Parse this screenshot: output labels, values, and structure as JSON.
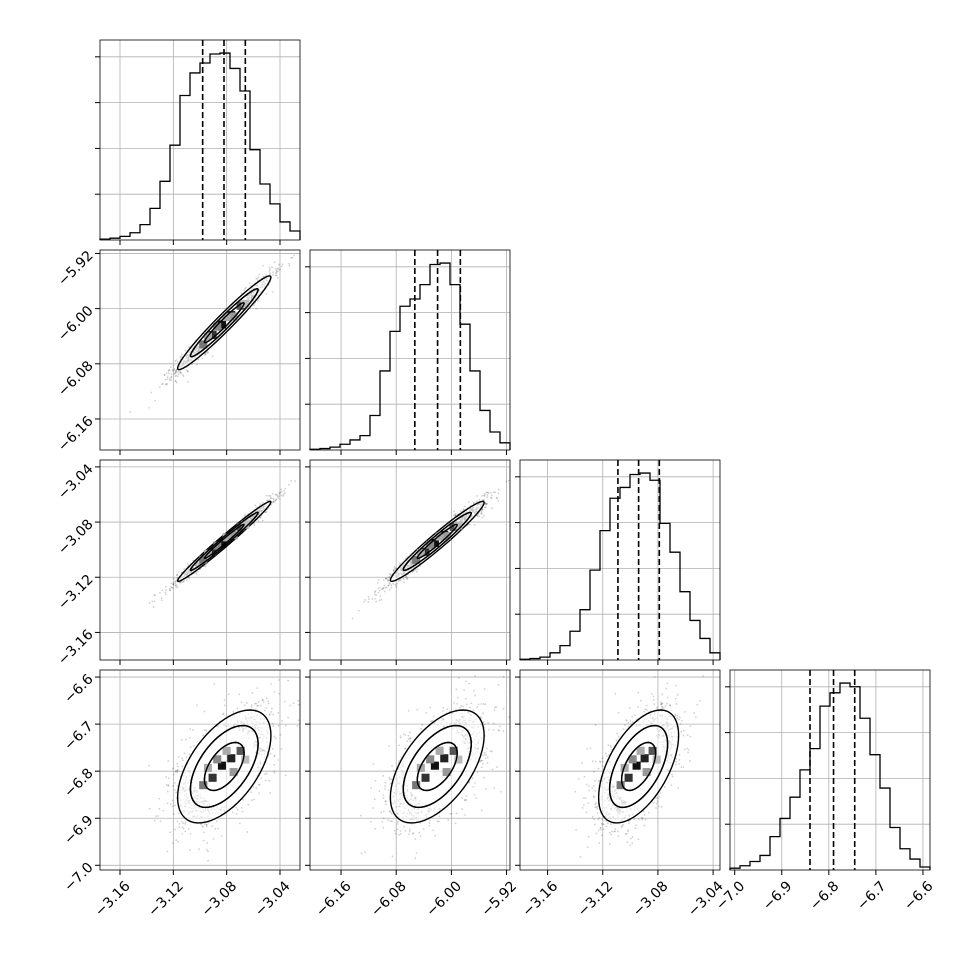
{
  "chart_data": {
    "type": "corner",
    "grid": true,
    "parameters": [
      {
        "range": [
          -3.175,
          -3.025
        ],
        "ticks": [
          -3.16,
          -3.12,
          -3.08,
          -3.04
        ],
        "tick_labels": [
          "−3.16",
          "−3.12",
          "−3.08",
          "−3.04"
        ]
      },
      {
        "range": [
          -6.205,
          -5.915
        ],
        "ticks": [
          -6.16,
          -6.08,
          -6.0,
          -5.92
        ],
        "tick_labels": [
          "−6.16",
          "−6.08",
          "−6.00",
          "−5.92"
        ]
      },
      {
        "range": [
          -3.18,
          -3.035
        ],
        "ticks": [
          -3.16,
          -3.12,
          -3.08,
          -3.04
        ],
        "tick_labels": [
          "−3.16",
          "−3.12",
          "−3.08",
          "−3.04"
        ]
      },
      {
        "range": [
          -7.01,
          -6.585
        ],
        "ticks": [
          -7.0,
          -6.9,
          -6.8,
          -6.7,
          -6.6
        ],
        "tick_labels": [
          "−7.0",
          "−6.9",
          "−6.8",
          "−6.7",
          "−6.6"
        ]
      }
    ],
    "histograms": [
      {
        "edges_start": -3.175,
        "bin_width": 0.0075,
        "counts": [
          1,
          2,
          4,
          8,
          17,
          35,
          65,
          105,
          160,
          185,
          196,
          206,
          207,
          190,
          165,
          100,
          62,
          40,
          20,
          10
        ],
        "quantiles": [
          -3.098,
          -3.082,
          -3.066
        ]
      },
      {
        "edges_start": -6.205,
        "bin_width": 0.0145,
        "counts": [
          1,
          2,
          4,
          8,
          14,
          20,
          48,
          110,
          165,
          200,
          210,
          230,
          258,
          260,
          230,
          175,
          110,
          55,
          25,
          10
        ],
        "quantiles": [
          -6.053,
          -6.02,
          -5.987
        ]
      },
      {
        "edges_start": -3.18,
        "bin_width": 0.00725,
        "counts": [
          1,
          2,
          4,
          10,
          20,
          40,
          70,
          125,
          180,
          225,
          240,
          258,
          260,
          250,
          190,
          150,
          95,
          55,
          30,
          10
        ],
        "quantiles": [
          -3.109,
          -3.094,
          -3.079
        ]
      },
      {
        "edges_start": -7.01,
        "bin_width": 0.02125,
        "counts": [
          3,
          7,
          14,
          24,
          55,
          85,
          120,
          165,
          200,
          270,
          292,
          308,
          302,
          250,
          190,
          135,
          70,
          35,
          18,
          5
        ],
        "quantiles": [
          -6.84,
          -6.79,
          -6.745
        ]
      }
    ],
    "pairs": [
      {
        "x": 0,
        "y": 1,
        "mean": [
          -3.0818,
          -6.0205
        ],
        "sd": [
          0.0175,
          0.034
        ],
        "rho": 0.97
      },
      {
        "x": 0,
        "y": 2,
        "mean": [
          -3.0818,
          -3.094
        ],
        "sd": [
          0.0175,
          0.0145
        ],
        "rho": 0.985
      },
      {
        "x": 1,
        "y": 2,
        "mean": [
          -6.0205,
          -3.094
        ],
        "sd": [
          0.034,
          0.0145
        ],
        "rho": 0.97
      },
      {
        "x": 0,
        "y": 3,
        "mean": [
          -3.0818,
          -6.79
        ],
        "sd": [
          0.0175,
          0.06
        ],
        "rho": 0.55
      },
      {
        "x": 1,
        "y": 3,
        "mean": [
          -6.0205,
          -6.79
        ],
        "sd": [
          0.034,
          0.06
        ],
        "rho": 0.55
      },
      {
        "x": 2,
        "y": 3,
        "mean": [
          -3.094,
          -6.79
        ],
        "sd": [
          0.0145,
          0.06
        ],
        "rho": 0.55
      }
    ]
  }
}
